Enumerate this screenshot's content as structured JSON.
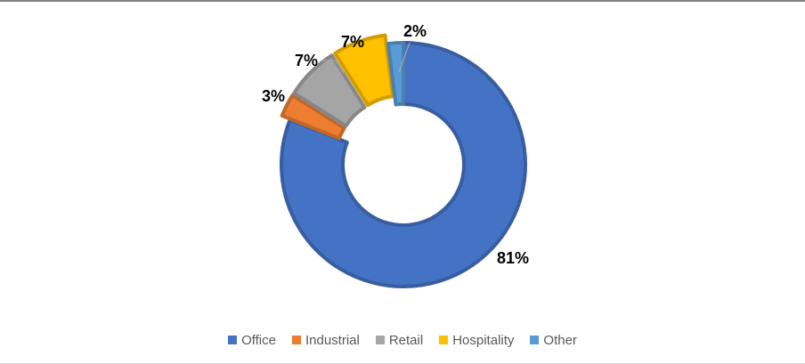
{
  "chart_data": {
    "type": "pie",
    "subtype": "donut",
    "categories": [
      "Office",
      "Industrial",
      "Retail",
      "Hospitality",
      "Other"
    ],
    "values": [
      81,
      3,
      7,
      7,
      2
    ],
    "data_labels": [
      "81%",
      "3%",
      "7%",
      "7%",
      "2%"
    ],
    "colors": [
      "#4472c4",
      "#ed7d31",
      "#a5a5a5",
      "#ffc000",
      "#5b9bd5"
    ],
    "exploded": [
      false,
      true,
      true,
      true,
      false
    ],
    "legend_position": "bottom",
    "title": ""
  },
  "legend": {
    "items": [
      {
        "label": "Office",
        "color": "#4472c4"
      },
      {
        "label": "Industrial",
        "color": "#ed7d31"
      },
      {
        "label": "Retail",
        "color": "#a5a5a5"
      },
      {
        "label": "Hospitality",
        "color": "#ffc000"
      },
      {
        "label": "Other",
        "color": "#5b9bd5"
      }
    ]
  }
}
